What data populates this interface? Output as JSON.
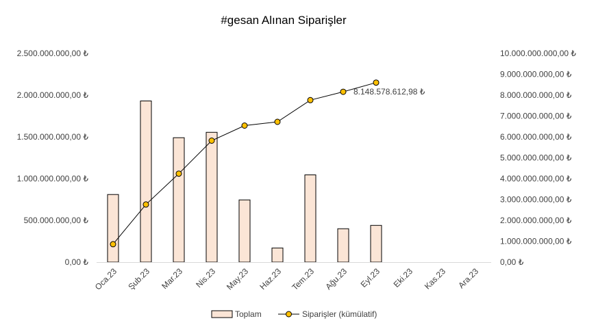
{
  "chart_data": {
    "type": "bar+line",
    "title": "#gesan Alınan Siparişler",
    "categories": [
      "Oca.23",
      "Şub.23",
      "Mar.23",
      "Nis.23",
      "May.23",
      "Haz.23",
      "Tem.23",
      "Ağu.23",
      "Eyl.23",
      "Eki.23",
      "Kas.23",
      "Ara.23"
    ],
    "series": [
      {
        "name": "Toplam",
        "type": "bar",
        "axis": "left",
        "color": "#fbe5d6",
        "stroke": "#000000",
        "values": [
          810000000,
          1930000000,
          1490000000,
          1555000000,
          745000000,
          170000000,
          1045000000,
          400000000,
          440000000,
          null,
          null,
          null
        ]
      },
      {
        "name": "Siparişler (kümülatif)",
        "type": "line",
        "axis": "right",
        "color": "#000000",
        "marker_color": "#ffc000",
        "values": [
          860000000,
          2760000000,
          4240000000,
          5820000000,
          6540000000,
          6720000000,
          7760000000,
          8160000000,
          8600000000,
          null,
          null,
          null
        ]
      }
    ],
    "left_axis": {
      "ylim": [
        0,
        2500000000
      ],
      "tick_labels": [
        "0,00 ₺",
        "500.000.000,00 ₺",
        "1.000.000.000,00 ₺",
        "1.500.000.000,00 ₺",
        "2.000.000.000,00 ₺",
        "2.500.000.000,00 ₺"
      ]
    },
    "right_axis": {
      "ylim": [
        0,
        10000000000
      ],
      "tick_labels": [
        "0,00 ₺",
        "1.000.000.000,00 ₺",
        "2.000.000.000,00 ₺",
        "3.000.000.000,00 ₺",
        "4.000.000.000,00 ₺",
        "5.000.000.000,00 ₺",
        "6.000.000.000,00 ₺",
        "7.000.000.000,00 ₺",
        "8.000.000.000,00 ₺",
        "9.000.000.000,00 ₺",
        "10.000.000.000,00 ₺"
      ]
    },
    "data_label": {
      "series": "Siparişler (kümülatif)",
      "index": 7,
      "text": "8.148.578.612,98 ₺"
    },
    "grid": false,
    "legend_position": "bottom"
  }
}
